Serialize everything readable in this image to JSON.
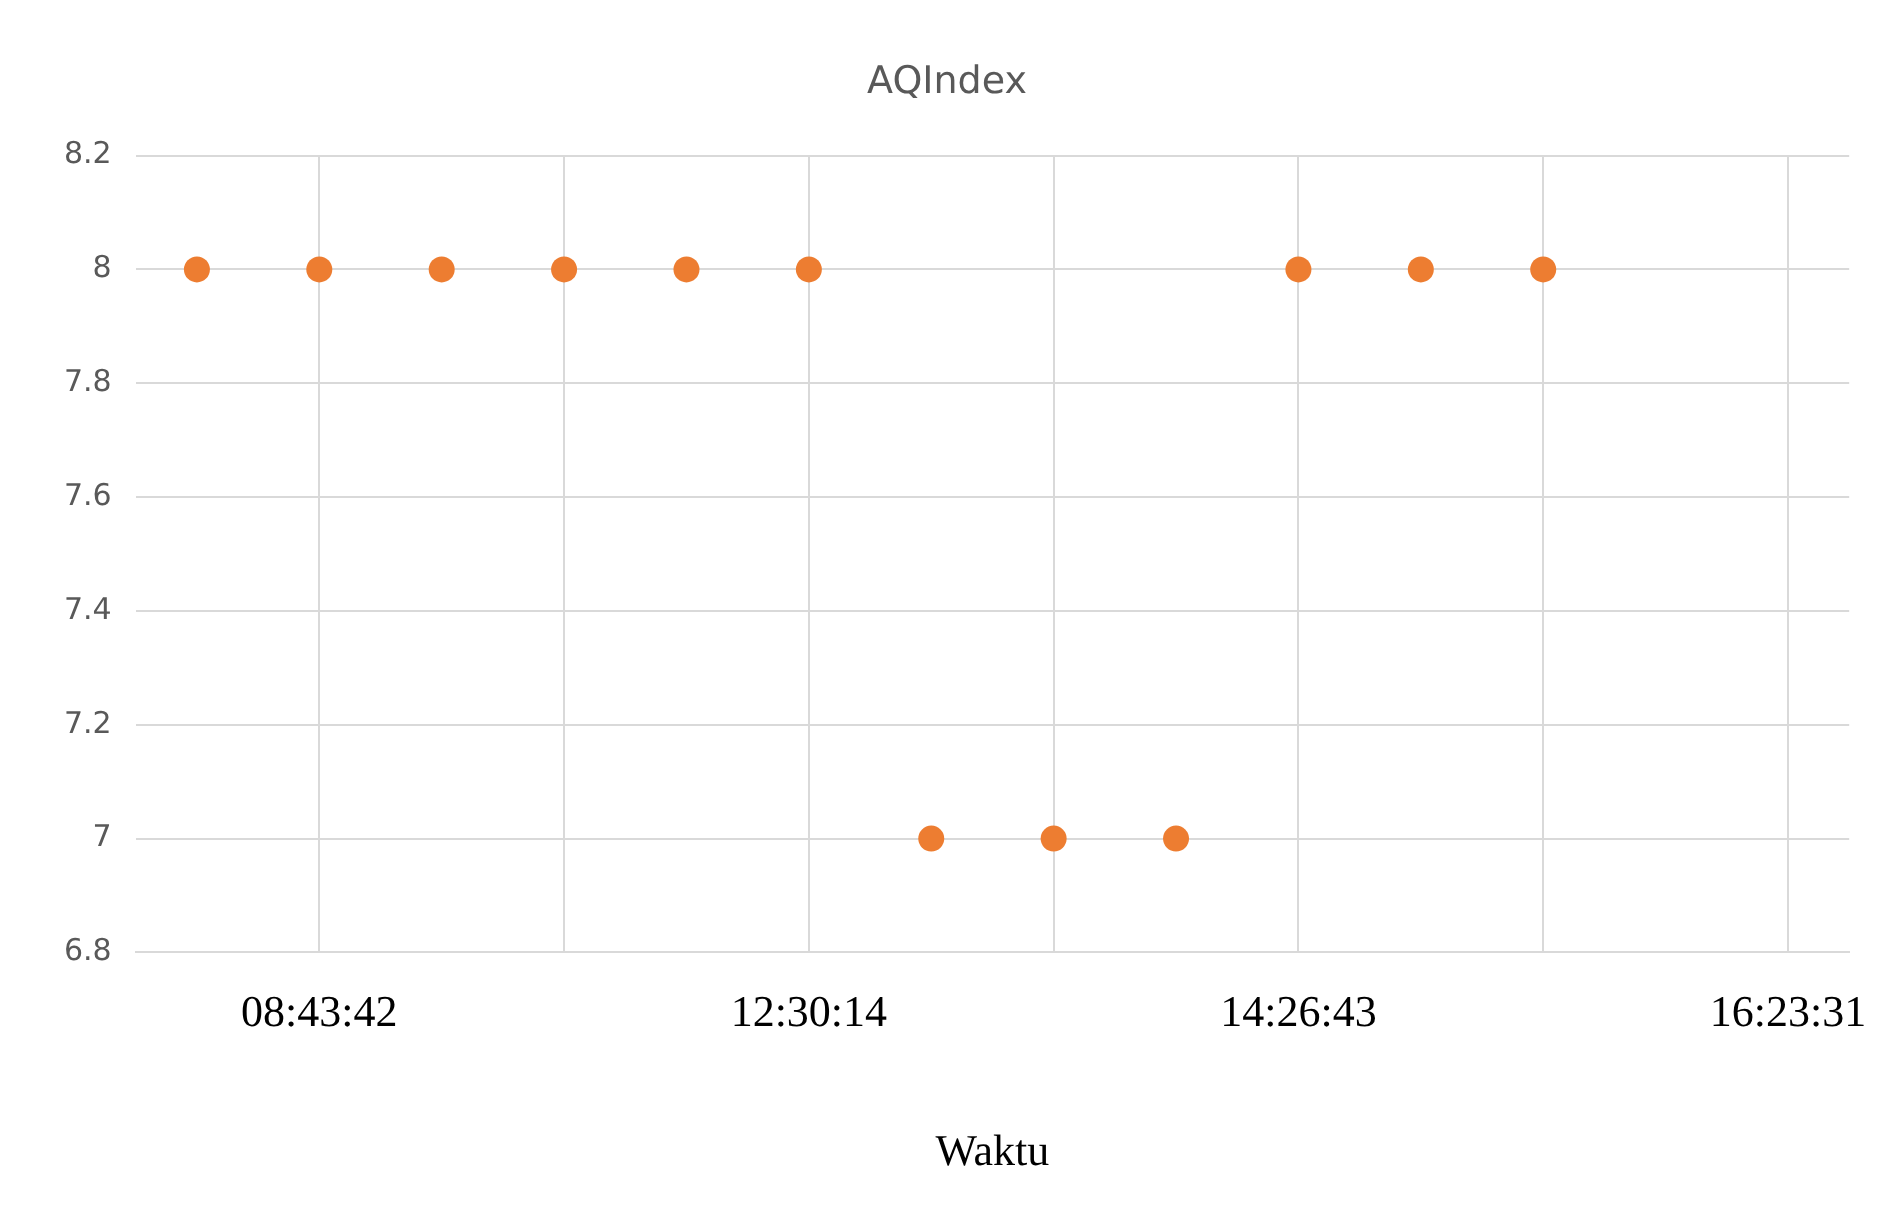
{
  "chart_data": {
    "type": "scatter",
    "title": "AQIndex",
    "xlabel": "Waktu",
    "categories": [
      null,
      "08:43:42",
      null,
      null,
      null,
      "12:30:14",
      null,
      null,
      null,
      "14:26:43",
      null,
      null,
      null,
      "16:23:31"
    ],
    "series": [
      {
        "color": "#ed7d31",
        "values": [
          8,
          8,
          8,
          8,
          8,
          8,
          7,
          7,
          7,
          8,
          8,
          8,
          null,
          null
        ]
      }
    ],
    "ylim": [
      6.8,
      8.2
    ],
    "yticks": [
      6.8,
      7,
      7.2,
      7.4,
      7.6,
      7.8,
      8,
      8.2
    ],
    "grid": true,
    "legend": false,
    "marker": "circle"
  }
}
